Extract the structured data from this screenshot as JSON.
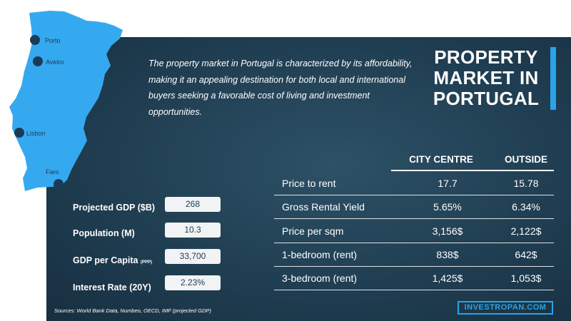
{
  "intro_text": "The property market in Portugal is characterized by its affordability, making it an appealing destination for both local and international buyers seeking a favorable cost of living and investment opportunities.",
  "title": {
    "line1": "PROPERTY",
    "line2": "MARKET IN",
    "line3": "PORTUGAL"
  },
  "map": {
    "fill_color": "#35a9f0",
    "cities": [
      {
        "name": "Porto"
      },
      {
        "name": "Aveiro"
      },
      {
        "name": "Lisbon"
      },
      {
        "name": "Faro"
      }
    ]
  },
  "table": {
    "headers": [
      "CITY CENTRE",
      "OUTSIDE"
    ],
    "rows": [
      {
        "label": "Price to rent",
        "city_centre": "17.7",
        "outside": "15.78"
      },
      {
        "label": "Gross Rental Yield",
        "city_centre": "5.65%",
        "outside": "6.34%"
      },
      {
        "label": "Price per sqm",
        "city_centre": "3,156$",
        "outside": "2,122$"
      },
      {
        "label": "1-bedroom (rent)",
        "city_centre": "838$",
        "outside": "642$"
      },
      {
        "label": "3-bedroom (rent)",
        "city_centre": "1,425$",
        "outside": "1,053$"
      }
    ]
  },
  "stats": [
    {
      "label": "Projected GDP ($B)",
      "suffix": "",
      "value": "268"
    },
    {
      "label": "Population (M)",
      "suffix": "",
      "value": "10.3"
    },
    {
      "label": "GDP per Capita",
      "suffix": "(PPP)",
      "value": "33,700"
    },
    {
      "label": "Interest Rate (20Y)",
      "suffix": "",
      "value": "2.23%"
    }
  ],
  "sources": "Sources:  World Bank Data, Numbeo, OECD, IMF (projected GDP)",
  "brand": "INVESTROPAN.COM",
  "colors": {
    "accent": "#29a3ea",
    "panel": "#203e52",
    "city_dot": "#1b3b55"
  }
}
